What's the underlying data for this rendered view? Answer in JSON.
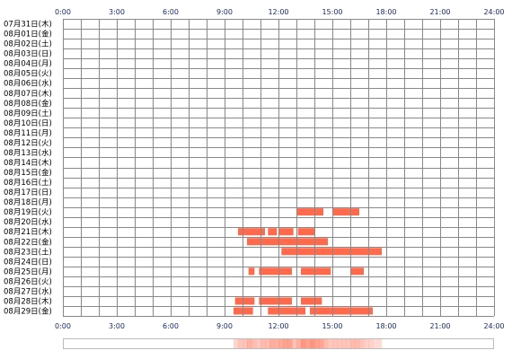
{
  "chart_data": {
    "type": "timeline",
    "x_axis": {
      "range_hours": [
        0,
        24
      ],
      "tick_labels": [
        "0:00",
        "3:00",
        "6:00",
        "9:00",
        "12:00",
        "15:00",
        "18:00",
        "21:00",
        "24:00"
      ]
    },
    "rows": [
      "07月31日(木)",
      "08月01日(金)",
      "08月02日(土)",
      "08月03日(日)",
      "08月04日(月)",
      "08月05日(火)",
      "08月06日(水)",
      "08月07日(木)",
      "08月08日(金)",
      "08月09日(土)",
      "08月10日(日)",
      "08月11日(月)",
      "08月12日(火)",
      "08月13日(水)",
      "08月14日(木)",
      "08月15日(金)",
      "08月16日(土)",
      "08月17日(日)",
      "08月18日(月)",
      "08月19日(火)",
      "08月20日(水)",
      "08月21日(木)",
      "08月22日(金)",
      "08月23日(土)",
      "08月24日(日)",
      "08月25日(月)",
      "08月26日(火)",
      "08月27日(水)",
      "08月28日(木)",
      "08月29日(金)"
    ],
    "activity": [
      {
        "row": 19,
        "start": "13:00",
        "end": "14:30"
      },
      {
        "row": 19,
        "start": "15:00",
        "end": "16:30"
      },
      {
        "row": 21,
        "start": "9:45",
        "end": "11:15"
      },
      {
        "row": 21,
        "start": "11:25",
        "end": "11:55"
      },
      {
        "row": 21,
        "start": "12:00",
        "end": "12:50"
      },
      {
        "row": 21,
        "start": "13:05",
        "end": "14:00"
      },
      {
        "row": 22,
        "start": "10:15",
        "end": "14:45"
      },
      {
        "row": 23,
        "start": "12:10",
        "end": "17:45"
      },
      {
        "row": 25,
        "start": "10:20",
        "end": "10:40"
      },
      {
        "row": 25,
        "start": "10:55",
        "end": "12:45"
      },
      {
        "row": 25,
        "start": "13:15",
        "end": "14:55"
      },
      {
        "row": 25,
        "start": "16:00",
        "end": "16:45"
      },
      {
        "row": 28,
        "start": "9:35",
        "end": "10:40"
      },
      {
        "row": 28,
        "start": "10:55",
        "end": "12:45"
      },
      {
        "row": 28,
        "start": "13:15",
        "end": "14:25"
      },
      {
        "row": 29,
        "start": "9:30",
        "end": "10:35"
      },
      {
        "row": 29,
        "start": "11:25",
        "end": "13:30"
      },
      {
        "row": 29,
        "start": "13:45",
        "end": "17:15"
      }
    ],
    "bar_color": "#ff6a4d",
    "grid_color": "#888888",
    "tick_label_color": "#1a2a6a",
    "row_label_color": "#000000",
    "grid": true,
    "summary_strip": true
  }
}
